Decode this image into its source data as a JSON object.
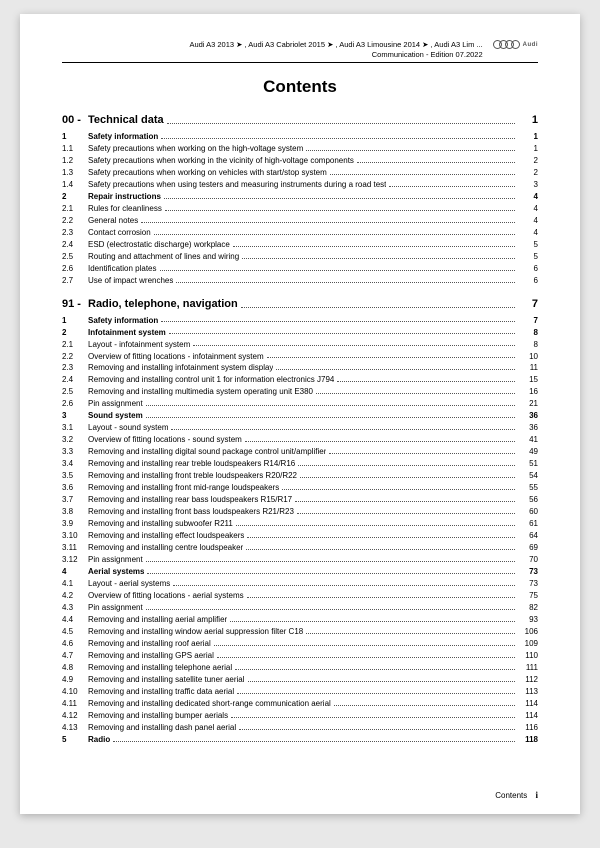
{
  "header": {
    "line1": "Audi A3 2013 ➤ , Audi A3 Cabriolet 2015 ➤ , Audi A3 Limousine 2014 ➤ , Audi A3 Lim ...",
    "line2": "Communication - Edition 07.2022",
    "brand": "Audi"
  },
  "title": "Contents",
  "sections": [
    {
      "code": "00 -",
      "title": "Technical data",
      "page": "1",
      "items": [
        {
          "n": "1",
          "t": "Safety information",
          "p": "1",
          "b": true
        },
        {
          "n": "1.1",
          "t": "Safety precautions when working on the high-voltage system",
          "p": "1"
        },
        {
          "n": "1.2",
          "t": "Safety precautions when working in the vicinity of high-voltage components",
          "p": "2"
        },
        {
          "n": "1.3",
          "t": "Safety precautions when working on vehicles with start/stop system",
          "p": "2"
        },
        {
          "n": "1.4",
          "t": "Safety precautions when using testers and measuring instruments during a road test",
          "p": "3"
        },
        {
          "n": "2",
          "t": "Repair instructions",
          "p": "4",
          "b": true
        },
        {
          "n": "2.1",
          "t": "Rules for cleanliness",
          "p": "4"
        },
        {
          "n": "2.2",
          "t": "General notes",
          "p": "4"
        },
        {
          "n": "2.3",
          "t": "Contact corrosion",
          "p": "4"
        },
        {
          "n": "2.4",
          "t": "ESD (electrostatic discharge) workplace",
          "p": "5"
        },
        {
          "n": "2.5",
          "t": "Routing and attachment of lines and wiring",
          "p": "5"
        },
        {
          "n": "2.6",
          "t": "Identification plates",
          "p": "6"
        },
        {
          "n": "2.7",
          "t": "Use of impact wrenches",
          "p": "6"
        }
      ]
    },
    {
      "code": "91 -",
      "title": "Radio, telephone, navigation",
      "page": "7",
      "items": [
        {
          "n": "1",
          "t": "Safety information",
          "p": "7",
          "b": true
        },
        {
          "n": "2",
          "t": "Infotainment system",
          "p": "8",
          "b": true
        },
        {
          "n": "2.1",
          "t": "Layout - infotainment system",
          "p": "8"
        },
        {
          "n": "2.2",
          "t": "Overview of fitting locations - infotainment system",
          "p": "10"
        },
        {
          "n": "2.3",
          "t": "Removing and installing infotainment system display",
          "p": "11"
        },
        {
          "n": "2.4",
          "t": "Removing and installing control unit 1 for information electronics J794",
          "p": "15"
        },
        {
          "n": "2.5",
          "t": "Removing and installing multimedia system operating unit E380",
          "p": "16"
        },
        {
          "n": "2.6",
          "t": "Pin assignment",
          "p": "21"
        },
        {
          "n": "3",
          "t": "Sound system",
          "p": "36",
          "b": true
        },
        {
          "n": "3.1",
          "t": "Layout - sound system",
          "p": "36"
        },
        {
          "n": "3.2",
          "t": "Overview of fitting locations - sound system",
          "p": "41"
        },
        {
          "n": "3.3",
          "t": "Removing and installing digital sound package control unit/amplifier",
          "p": "49"
        },
        {
          "n": "3.4",
          "t": "Removing and installing rear treble loudspeakers R14/R16",
          "p": "51"
        },
        {
          "n": "3.5",
          "t": "Removing and installing front treble loudspeakers R20/R22",
          "p": "54"
        },
        {
          "n": "3.6",
          "t": "Removing and installing front mid-range loudspeakers",
          "p": "55"
        },
        {
          "n": "3.7",
          "t": "Removing and installing rear bass loudspeakers R15/R17",
          "p": "56"
        },
        {
          "n": "3.8",
          "t": "Removing and installing front bass loudspeakers R21/R23",
          "p": "60"
        },
        {
          "n": "3.9",
          "t": "Removing and installing subwoofer R211",
          "p": "61"
        },
        {
          "n": "3.10",
          "t": "Removing and installing effect loudspeakers",
          "p": "64"
        },
        {
          "n": "3.11",
          "t": "Removing and installing centre loudspeaker",
          "p": "69"
        },
        {
          "n": "3.12",
          "t": "Pin assignment",
          "p": "70"
        },
        {
          "n": "4",
          "t": "Aerial systems",
          "p": "73",
          "b": true
        },
        {
          "n": "4.1",
          "t": "Layout - aerial systems",
          "p": "73"
        },
        {
          "n": "4.2",
          "t": "Overview of fitting locations - aerial systems",
          "p": "75"
        },
        {
          "n": "4.3",
          "t": "Pin assignment",
          "p": "82"
        },
        {
          "n": "4.4",
          "t": "Removing and installing aerial amplifier",
          "p": "93"
        },
        {
          "n": "4.5",
          "t": "Removing and installing window aerial suppression filter C18",
          "p": "106"
        },
        {
          "n": "4.6",
          "t": "Removing and installing roof aerial",
          "p": "109"
        },
        {
          "n": "4.7",
          "t": "Removing and installing GPS aerial",
          "p": "110"
        },
        {
          "n": "4.8",
          "t": "Removing and installing telephone aerial",
          "p": "111"
        },
        {
          "n": "4.9",
          "t": "Removing and installing satellite tuner aerial",
          "p": "112"
        },
        {
          "n": "4.10",
          "t": "Removing and installing traffic data aerial",
          "p": "113"
        },
        {
          "n": "4.11",
          "t": "Removing and installing dedicated short-range communication aerial",
          "p": "114"
        },
        {
          "n": "4.12",
          "t": "Removing and installing bumper aerials",
          "p": "114"
        },
        {
          "n": "4.13",
          "t": "Removing and installing dash panel aerial",
          "p": "116"
        },
        {
          "n": "5",
          "t": "Radio",
          "p": "118",
          "b": true
        }
      ]
    }
  ],
  "footer": {
    "label": "Contents",
    "page": "i"
  }
}
